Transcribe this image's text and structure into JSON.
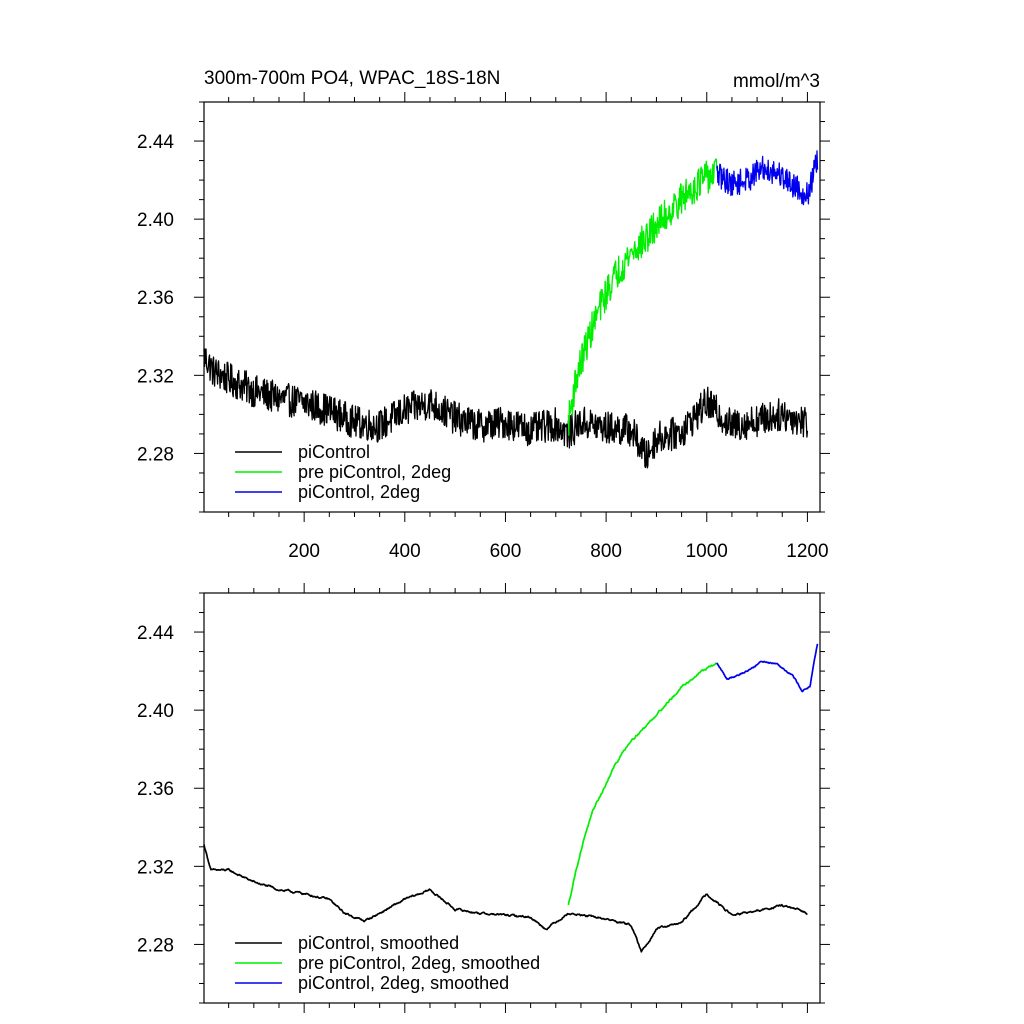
{
  "chart_data": [
    {
      "type": "line",
      "title": "300m-700m PO4, WPAC_18S-18N",
      "units": "mmol/m^3",
      "xlim": [
        1,
        1225
      ],
      "ylim": [
        2.25,
        2.46
      ],
      "y_ticks": [
        2.28,
        2.32,
        2.36,
        2.4,
        2.44
      ],
      "y_tick_labels": [
        "2.28",
        "2.32",
        "2.36",
        "2.40",
        "2.44"
      ],
      "x_ticks": [
        200,
        400,
        600,
        800,
        1000,
        1200
      ],
      "x_tick_labels": [
        "200",
        "400",
        "600",
        "800",
        "1000",
        "1200"
      ],
      "grid": false,
      "legend": "bottom-left",
      "series": [
        {
          "name": "piControl",
          "color": "#000000",
          "x": [
            1,
            20,
            50,
            100,
            150,
            200,
            250,
            300,
            350,
            400,
            450,
            500,
            550,
            600,
            650,
            700,
            725,
            750,
            800,
            850,
            880,
            900,
            950,
            1000,
            1050,
            1100,
            1150,
            1200
          ],
          "y": [
            2.33,
            2.322,
            2.318,
            2.312,
            2.308,
            2.306,
            2.302,
            2.296,
            2.294,
            2.302,
            2.306,
            2.298,
            2.294,
            2.296,
            2.292,
            2.295,
            2.29,
            2.296,
            2.293,
            2.292,
            2.278,
            2.288,
            2.291,
            2.306,
            2.294,
            2.297,
            2.3,
            2.296
          ]
        },
        {
          "name": "pre piControl, 2deg",
          "color": "#00ee00",
          "x": [
            725,
            740,
            760,
            780,
            800,
            820,
            850,
            880,
            900,
            930,
            960,
            990,
            1020
          ],
          "y": [
            2.296,
            2.318,
            2.335,
            2.35,
            2.362,
            2.372,
            2.383,
            2.39,
            2.397,
            2.405,
            2.413,
            2.42,
            2.424
          ]
        },
        {
          "name": "piControl, 2deg",
          "color": "#0000ee",
          "x": [
            1020,
            1050,
            1080,
            1110,
            1140,
            1170,
            1200,
            1220
          ],
          "y": [
            2.423,
            2.418,
            2.42,
            2.426,
            2.424,
            2.418,
            2.412,
            2.43
          ]
        }
      ]
    },
    {
      "type": "line",
      "xlim": [
        1,
        1225
      ],
      "ylim": [
        2.25,
        2.46
      ],
      "y_ticks": [
        2.28,
        2.32,
        2.36,
        2.4,
        2.44
      ],
      "y_tick_labels": [
        "2.28",
        "2.32",
        "2.36",
        "2.40",
        "2.44"
      ],
      "x_ticks": [
        200,
        400,
        600,
        800,
        1000,
        1200
      ],
      "grid": false,
      "legend": "bottom-left",
      "series": [
        {
          "name": "piControl, smoothed",
          "color": "#000000",
          "x": [
            1,
            15,
            50,
            100,
            150,
            200,
            250,
            280,
            320,
            350,
            400,
            450,
            500,
            550,
            600,
            650,
            680,
            725,
            750,
            800,
            850,
            870,
            900,
            950,
            1000,
            1050,
            1100,
            1150,
            1200
          ],
          "y": [
            2.331,
            2.318,
            2.318,
            2.312,
            2.308,
            2.306,
            2.303,
            2.296,
            2.292,
            2.296,
            2.303,
            2.308,
            2.298,
            2.296,
            2.295,
            2.294,
            2.288,
            2.296,
            2.295,
            2.293,
            2.29,
            2.276,
            2.288,
            2.291,
            2.306,
            2.295,
            2.297,
            2.3,
            2.296
          ]
        },
        {
          "name": "pre piControl, 2deg, smoothed",
          "color": "#00ee00",
          "x": [
            725,
            740,
            760,
            780,
            800,
            820,
            850,
            880,
            900,
            930,
            960,
            990,
            1020
          ],
          "y": [
            2.3,
            2.318,
            2.338,
            2.352,
            2.362,
            2.373,
            2.385,
            2.392,
            2.398,
            2.406,
            2.414,
            2.42,
            2.424
          ]
        },
        {
          "name": "piControl, 2deg, smoothed",
          "color": "#0000ee",
          "x": [
            1020,
            1040,
            1060,
            1080,
            1110,
            1140,
            1170,
            1190,
            1205,
            1220
          ],
          "y": [
            2.424,
            2.416,
            2.418,
            2.42,
            2.425,
            2.424,
            2.418,
            2.41,
            2.412,
            2.434
          ]
        }
      ]
    }
  ]
}
